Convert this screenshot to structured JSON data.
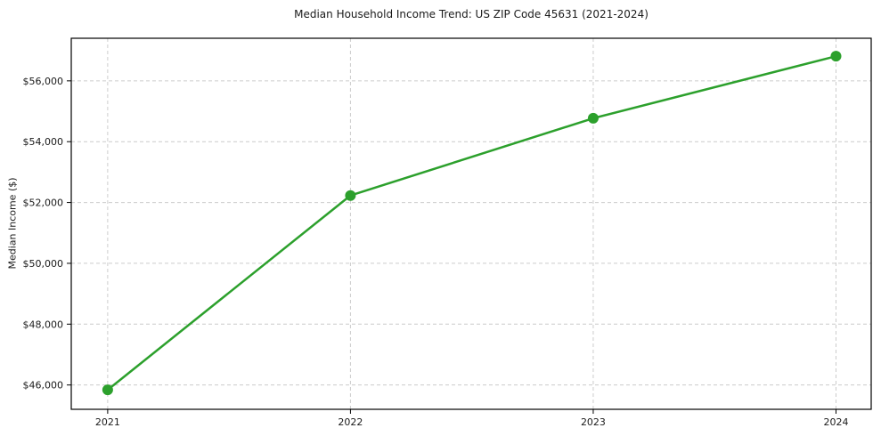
{
  "chart_data": {
    "type": "line",
    "title": "Median Household Income Trend: US ZIP Code 45631 (2021-2024)",
    "xlabel": "",
    "ylabel": "Median Income ($)",
    "x": [
      2021,
      2022,
      2023,
      2024
    ],
    "values": [
      45840,
      52230,
      54770,
      56810
    ],
    "x_ticks": [
      {
        "value": 2021,
        "label": "2021"
      },
      {
        "value": 2022,
        "label": "2022"
      },
      {
        "value": 2023,
        "label": "2023"
      },
      {
        "value": 2024,
        "label": "2024"
      }
    ],
    "y_ticks": [
      {
        "value": 46000,
        "label": "$46,000"
      },
      {
        "value": 48000,
        "label": "$48,000"
      },
      {
        "value": 50000,
        "label": "$50,000"
      },
      {
        "value": 52000,
        "label": "$52,000"
      },
      {
        "value": 54000,
        "label": "$54,000"
      },
      {
        "value": 56000,
        "label": "$56,000"
      }
    ],
    "xlim": [
      2020.85,
      2024.145
    ],
    "ylim": [
      45200,
      57400
    ],
    "grid": true,
    "grid_style": "dashed",
    "legend": null,
    "line_color": "#2ca02c",
    "marker": "circle",
    "grid_color": "#cccccc",
    "axis_color": "#000000",
    "background": "#ffffff"
  }
}
